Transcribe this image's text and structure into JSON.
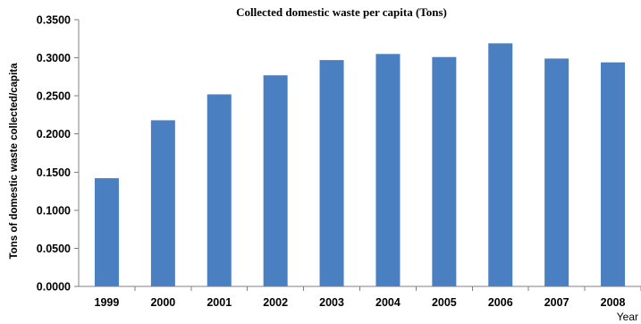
{
  "chart_data": {
    "type": "bar",
    "title": "Collected domestic waste per capita (Tons)",
    "xlabel": "Year",
    "ylabel": "Tons of domestic waste collected/capita",
    "categories": [
      "1999",
      "2000",
      "2001",
      "2002",
      "2003",
      "2004",
      "2005",
      "2006",
      "2007",
      "2008"
    ],
    "values": [
      0.142,
      0.218,
      0.252,
      0.277,
      0.297,
      0.305,
      0.301,
      0.319,
      0.299,
      0.294
    ],
    "ylim": [
      0,
      0.35
    ],
    "yticks": [
      "0.0000",
      "0.0500",
      "0.1000",
      "0.1500",
      "0.2000",
      "0.2500",
      "0.3000",
      "0.3500"
    ],
    "grid": false,
    "legend": "none",
    "bar_color": "#4A7FC1",
    "axis_color": "#808080"
  }
}
